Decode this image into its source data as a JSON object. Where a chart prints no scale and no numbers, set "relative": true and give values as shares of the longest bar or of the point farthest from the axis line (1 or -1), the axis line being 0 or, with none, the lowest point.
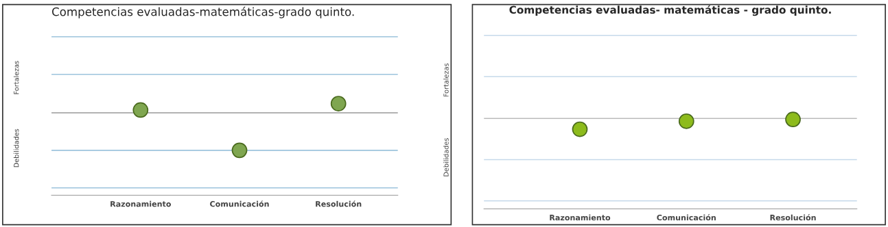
{
  "chart_data": [
    {
      "type": "scatter",
      "title": "Competencias evaluadas-matemáticas-grado quinto.",
      "categories": [
        "Razonamiento",
        "Comunicación",
        "Resolución"
      ],
      "relative": true,
      "marker": "circle",
      "legend": false,
      "annotations": [
        "Fortalezas",
        "Debilidades"
      ],
      "ref_lines": [
        {
          "axis": "y",
          "value": 0.08,
          "color": "#9cc3dc"
        },
        {
          "axis": "y",
          "value": 0.49,
          "color": "#9cc3dc"
        },
        {
          "axis": "y",
          "value": 0.9,
          "color": "#999999"
        },
        {
          "axis": "y",
          "value": 1.32,
          "color": "#9cc3dc"
        },
        {
          "axis": "y",
          "value": 1.73,
          "color": "#9cc3dc"
        }
      ],
      "series": [
        {
          "color": "#7fa650",
          "values": [
            0.93,
            0.49,
            1
          ]
        }
      ]
    },
    {
      "type": "scatter",
      "title": "Competencias evaluadas- matemáticas - grado quinto.",
      "categories": [
        "Razonamiento",
        "Comunicación",
        "Resolución"
      ],
      "relative": true,
      "marker": "circle",
      "legend": false,
      "annotations": [
        "Fortalezas",
        "Debilidades"
      ],
      "ref_lines": [
        {
          "axis": "y",
          "value": 0.09,
          "color": "#c5d9ea"
        },
        {
          "axis": "y",
          "value": 0.55,
          "color": "#c5d9ea"
        },
        {
          "axis": "y",
          "value": 1.01,
          "color": "#bbbbbb"
        },
        {
          "axis": "y",
          "value": 1.48,
          "color": "#c5d9ea"
        },
        {
          "axis": "y",
          "value": 1.94,
          "color": "#c5d9ea"
        }
      ],
      "series": [
        {
          "color": "#8dbb1c",
          "values": [
            0.89,
            0.98,
            1
          ]
        }
      ]
    }
  ]
}
